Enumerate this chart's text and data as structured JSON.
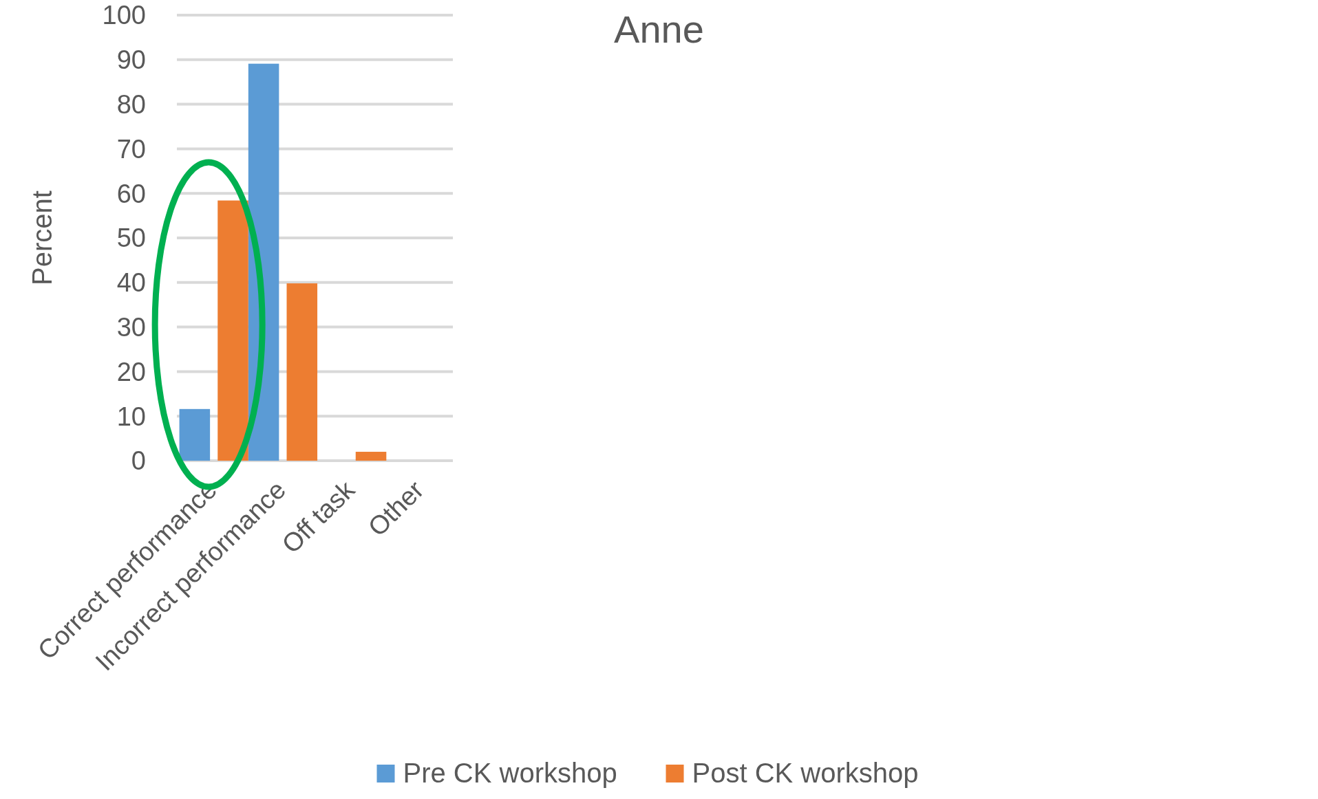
{
  "chart_data": {
    "type": "bar",
    "title": "Anne",
    "ylabel": "Percent",
    "categories": [
      "Correct performance",
      "Incorrect performance",
      "Off task",
      "Other"
    ],
    "series": [
      {
        "name": "Pre CK workshop",
        "color": "#5b9bd5",
        "values": [
          11.6,
          89.1,
          0,
          0
        ]
      },
      {
        "name": "Post CK workshop",
        "color": "#ed7d31",
        "values": [
          58.4,
          39.8,
          2,
          0
        ]
      }
    ],
    "ylim": [
      0,
      100
    ],
    "yticks": [
      0,
      10,
      20,
      30,
      40,
      50,
      60,
      70,
      80,
      90,
      100
    ],
    "grid": "y",
    "legend": "bottom"
  }
}
